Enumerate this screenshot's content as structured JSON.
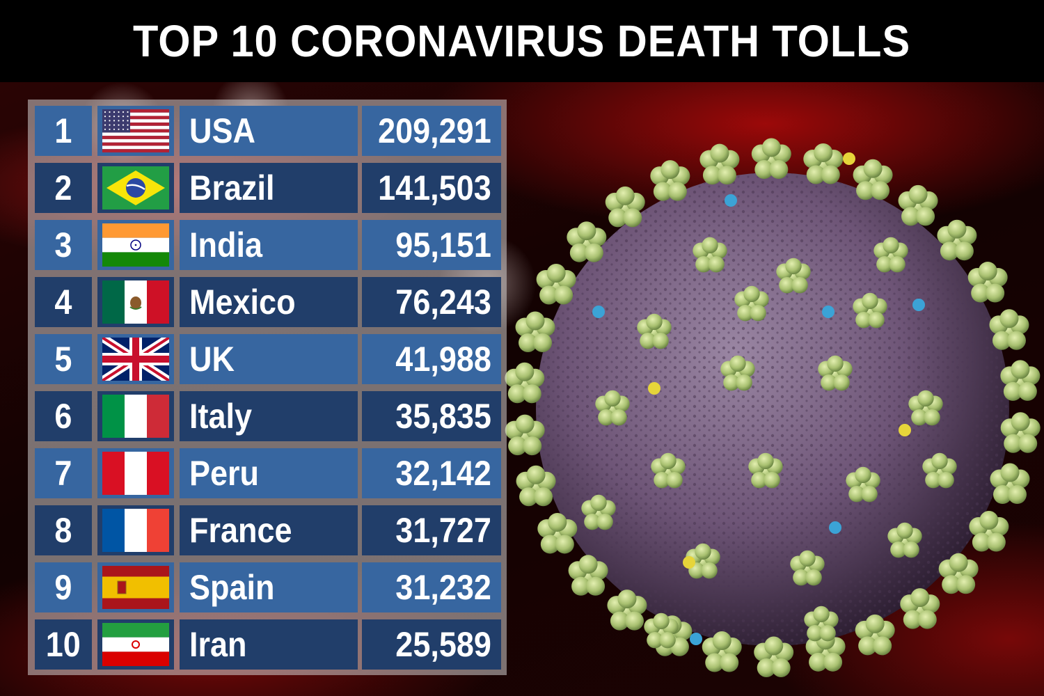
{
  "title": "TOP 10 CORONAVIRUS DEATH TOLLS",
  "table": {
    "rows": [
      {
        "rank": "1",
        "country": "USA",
        "deaths": "209,291",
        "flag": "usa-flag"
      },
      {
        "rank": "2",
        "country": "Brazil",
        "deaths": "141,503",
        "flag": "brazil-flag"
      },
      {
        "rank": "3",
        "country": "India",
        "deaths": "95,151",
        "flag": "india-flag"
      },
      {
        "rank": "4",
        "country": "Mexico",
        "deaths": "76,243",
        "flag": "mexico-flag"
      },
      {
        "rank": "5",
        "country": "UK",
        "deaths": "41,988",
        "flag": "uk-flag"
      },
      {
        "rank": "6",
        "country": "Italy",
        "deaths": "35,835",
        "flag": "italy-flag"
      },
      {
        "rank": "7",
        "country": "Peru",
        "deaths": "32,142",
        "flag": "peru-flag"
      },
      {
        "rank": "8",
        "country": "France",
        "deaths": "31,727",
        "flag": "france-flag"
      },
      {
        "rank": "9",
        "country": "Spain",
        "deaths": "31,232",
        "flag": "spain-flag"
      },
      {
        "rank": "10",
        "country": "Iran",
        "deaths": "25,589",
        "flag": "iran-flag"
      }
    ]
  },
  "colors": {
    "row_light": "#3766a0",
    "row_dark": "#213e6a",
    "virus_body": "#6e5577",
    "spike": "#a8c070"
  }
}
